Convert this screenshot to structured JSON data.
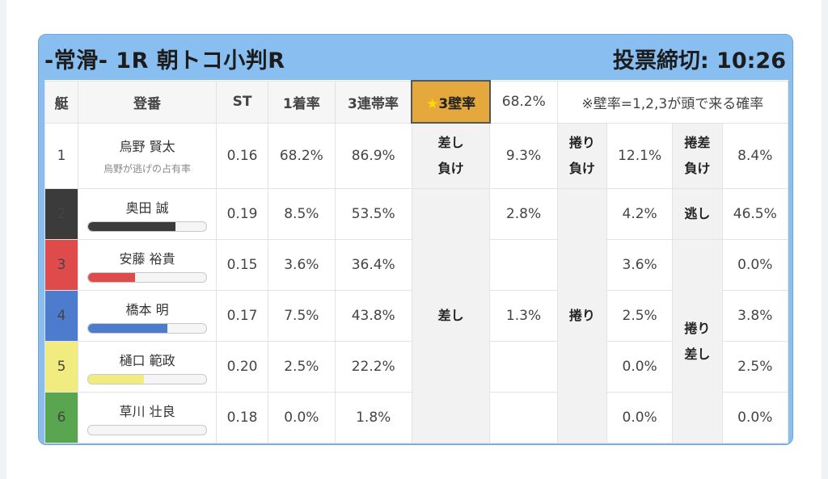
{
  "header": {
    "title": "-常滑- 1R 朝トコ小判R",
    "deadline": "投票締切: 10:26"
  },
  "table": {
    "headers": {
      "frame": "艇",
      "player": "登番",
      "st": "ST",
      "first_rate": "1着率",
      "triple_rate": "3連帯率",
      "wall_label": "3壁率",
      "wall_star": "★",
      "wall_value": "68.2%",
      "note": "※壁率=1,2,3が頭で来る確率"
    },
    "row1": {
      "no": "1",
      "name": "烏野 賢太",
      "sub": "烏野が逃げの占有率",
      "st": "0.16",
      "first": "68.2%",
      "triple": "86.9%",
      "tac1": "差し\n負け",
      "v1": "9.3%",
      "tac2": "捲り\n負け",
      "v2": "12.1%",
      "tac3": "捲差\n負け",
      "v3": "8.4%"
    },
    "rows": [
      {
        "no": "2",
        "name": "奥田 誠",
        "st": "0.19",
        "first": "8.5%",
        "triple": "53.5%",
        "v1": "2.8%",
        "v2": "4.2%",
        "v3": "46.5%",
        "bar_pct": 0.74,
        "bar_color": "#3b3b3b"
      },
      {
        "no": "3",
        "name": "安藤 裕貴",
        "st": "0.15",
        "first": "3.6%",
        "triple": "36.4%",
        "v1": "",
        "v2": "3.6%",
        "v3": "0.0%",
        "bar_pct": 0.4,
        "bar_color": "#df4b4b"
      },
      {
        "no": "4",
        "name": "橋本 明",
        "st": "0.17",
        "first": "7.5%",
        "triple": "43.8%",
        "v1": "1.3%",
        "v2": "2.5%",
        "v3": "3.8%",
        "bar_pct": 0.67,
        "bar_color": "#4d7bce"
      },
      {
        "no": "5",
        "name": "樋口 範政",
        "st": "0.20",
        "first": "2.5%",
        "triple": "22.2%",
        "v1": "",
        "v2": "0.0%",
        "v3": "2.5%",
        "bar_pct": 0.47,
        "bar_color": "#f1ec80"
      },
      {
        "no": "6",
        "name": "草川 壮良",
        "st": "0.18",
        "first": "0.0%",
        "triple": "1.8%",
        "v1": "",
        "v2": "0.0%",
        "v3": "0.0%",
        "bar_pct": 0.0,
        "bar_color": "#5aa650"
      }
    ],
    "tactics": {
      "sashi": "差し",
      "makuri": "捲り",
      "nige": "逃し",
      "makuri_sashi": "捲り\n差し"
    }
  }
}
